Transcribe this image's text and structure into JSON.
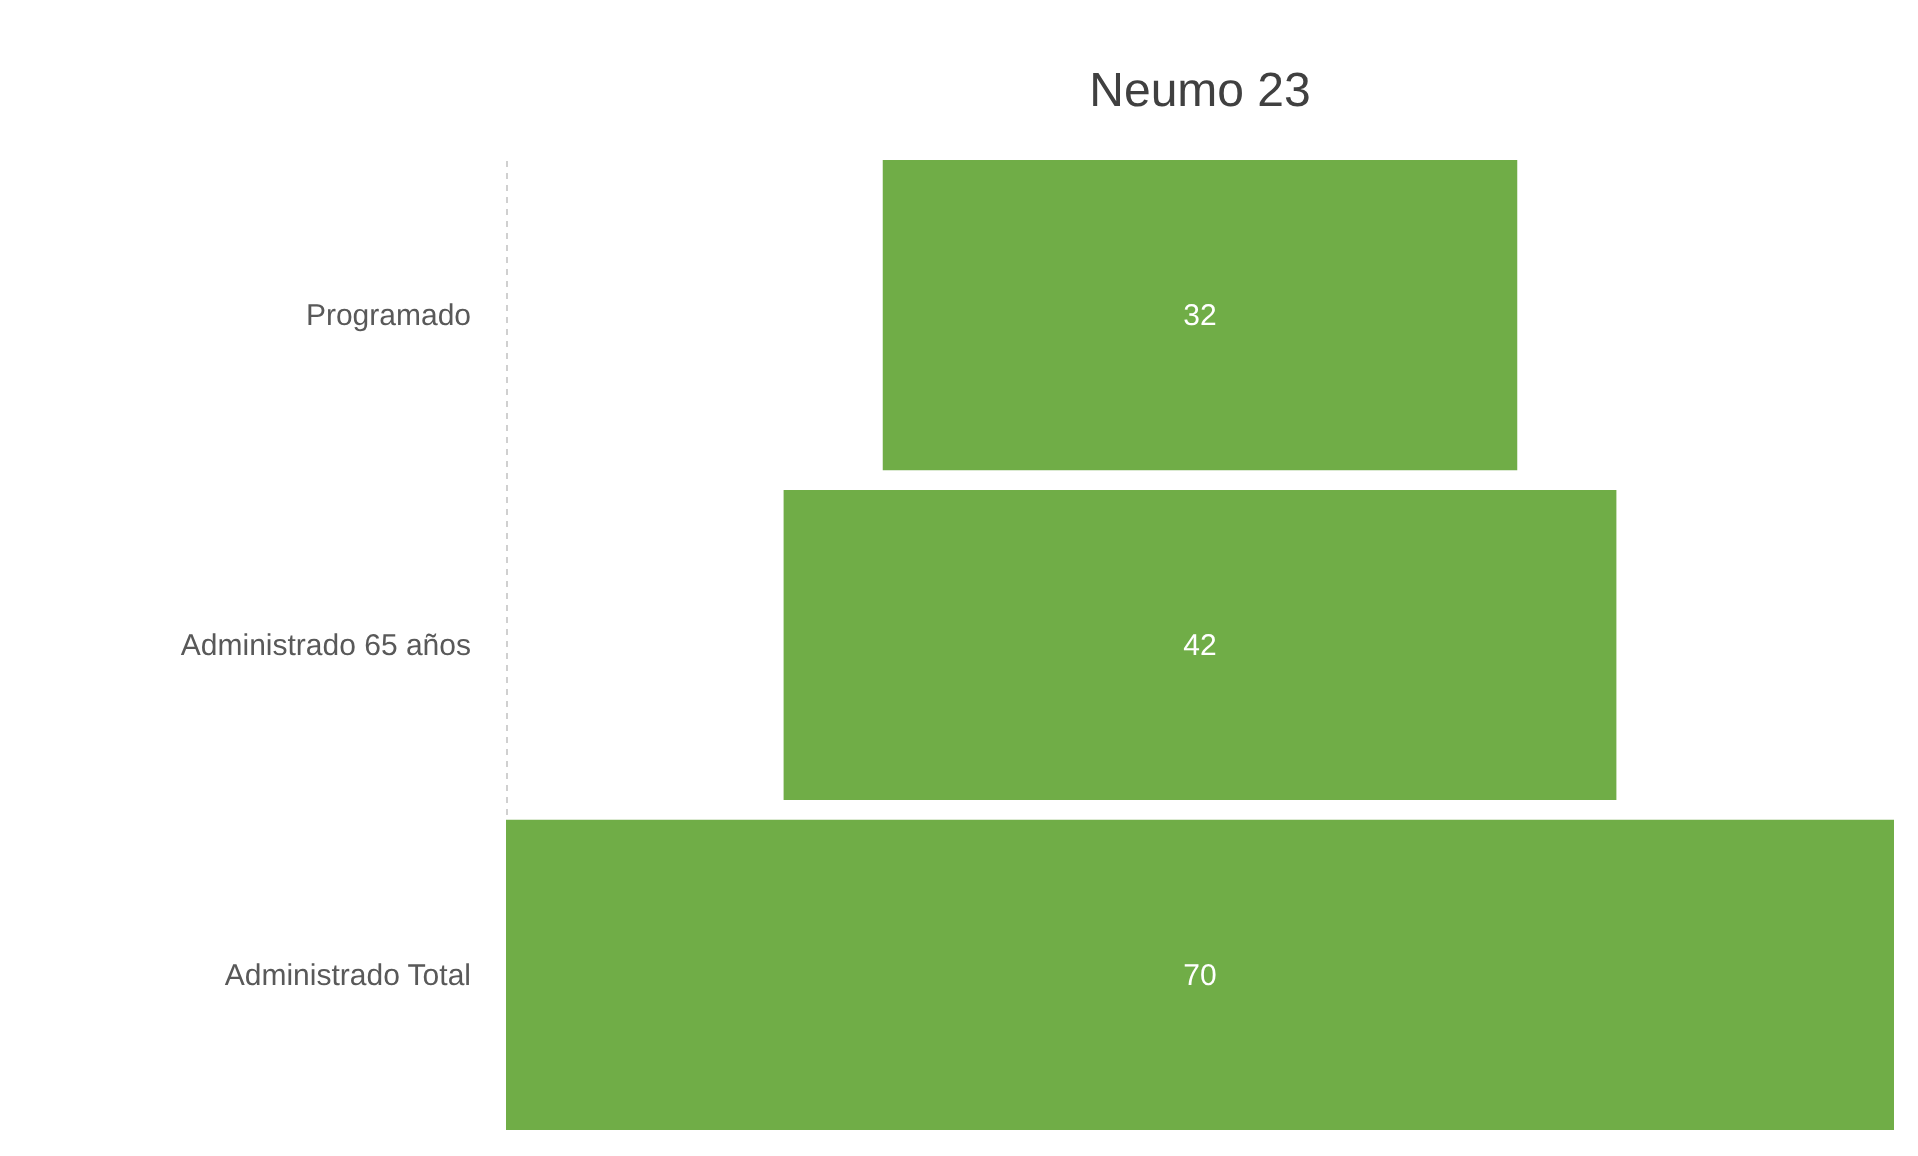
{
  "chart_data": {
    "type": "other",
    "title": "Neumo 23",
    "categories": [
      "Programado",
      "Administrado 65 años",
      "Administrado Total"
    ],
    "values": [
      32,
      42,
      70
    ],
    "color": "#70ad47",
    "data_labels": true
  }
}
